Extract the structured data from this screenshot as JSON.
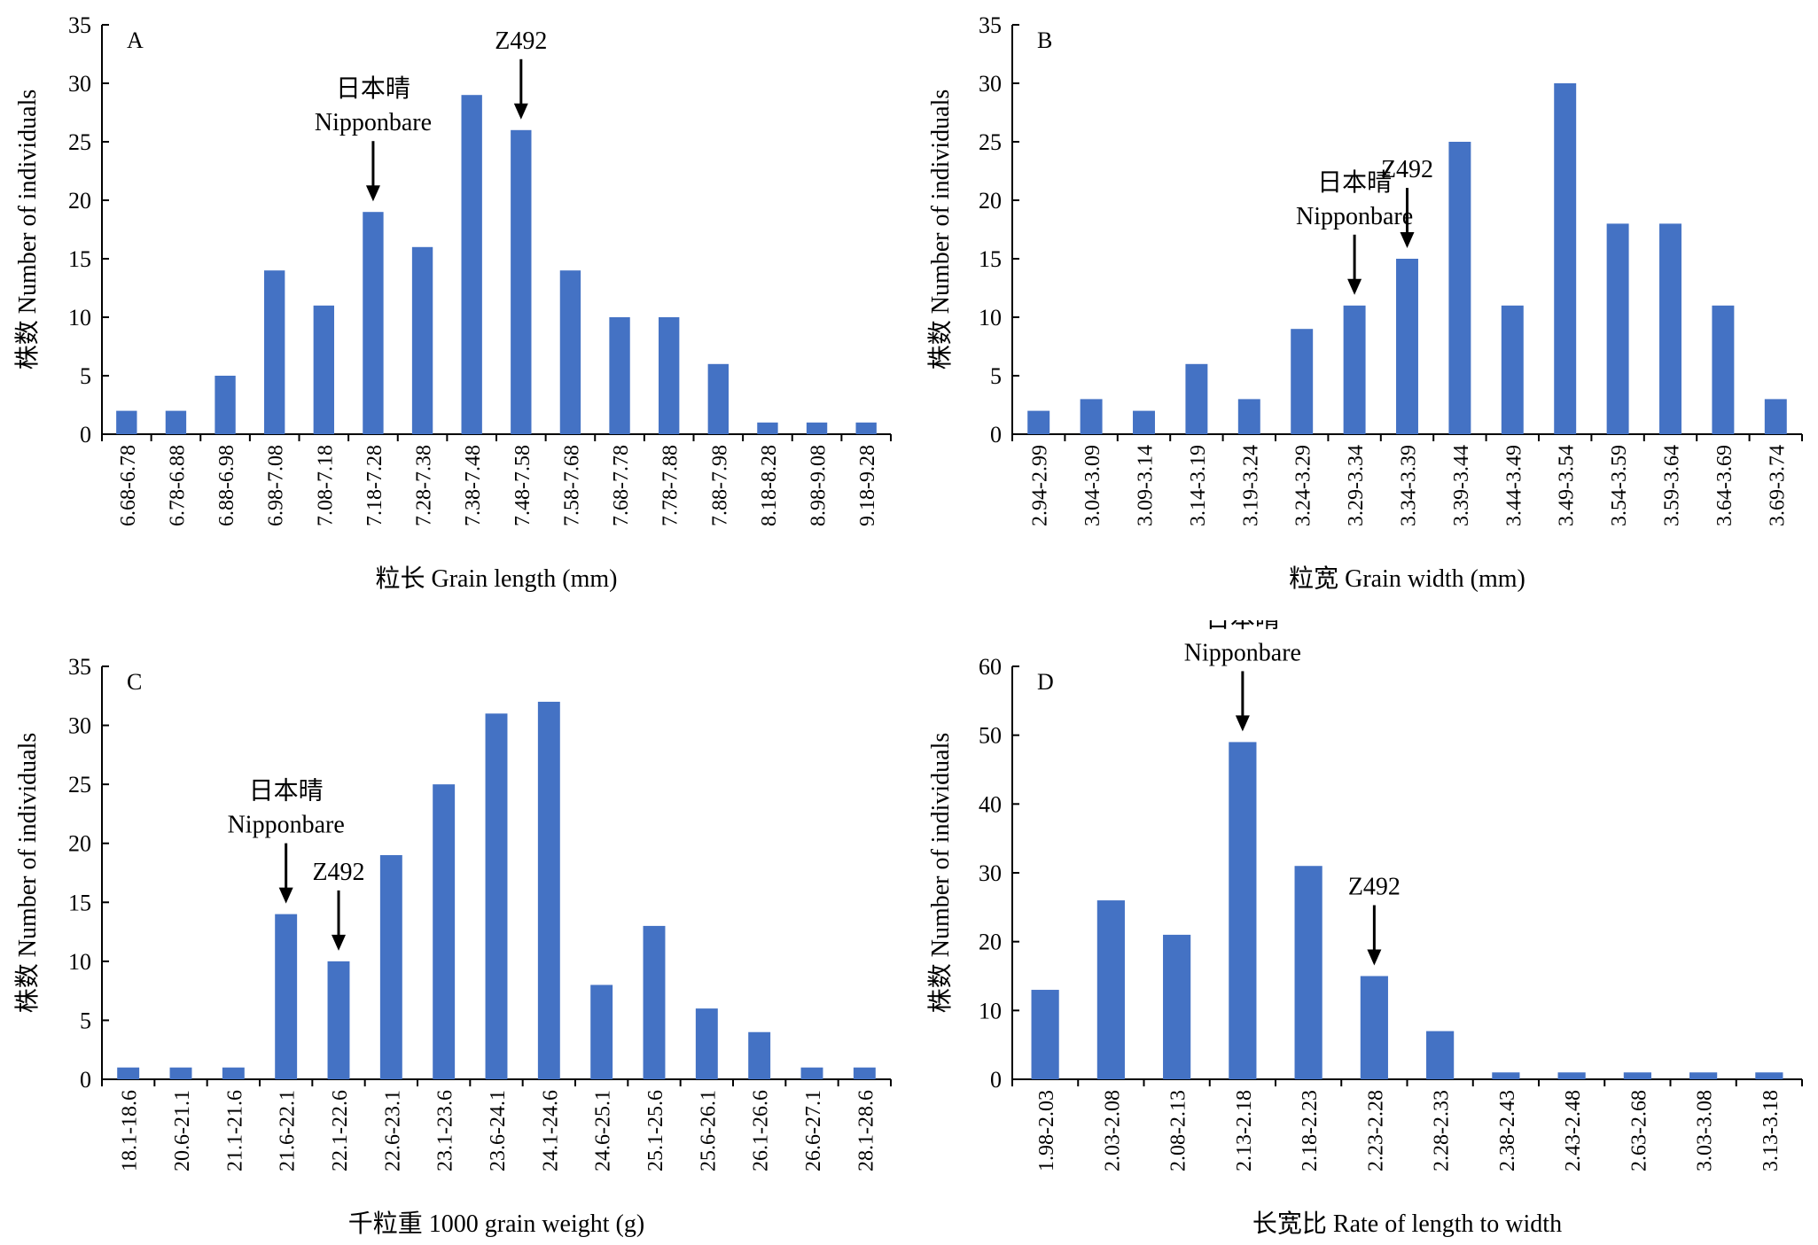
{
  "bar_color": "#4472C4",
  "arrow_icon": "down-arrow-icon",
  "chart_data": [
    {
      "type": "bar",
      "panel_label": "A",
      "xlabel": "粒长 Grain length (mm)",
      "ylabel": "株数 Number of individuals",
      "ylim": [
        0,
        35
      ],
      "yticks": [
        0,
        5,
        10,
        15,
        20,
        25,
        30,
        35
      ],
      "categories": [
        "6.68-6.78",
        "6.78-6.88",
        "6.88-6.98",
        "6.98-7.08",
        "7.08-7.18",
        "7.18-7.28",
        "7.28-7.38",
        "7.38-7.48",
        "7.48-7.58",
        "7.58-7.68",
        "7.68-7.78",
        "7.78-7.88",
        "7.88-7.98",
        "8.18-8.28",
        "8.98-9.08",
        "9.18-9.28"
      ],
      "values": [
        2,
        2,
        5,
        14,
        11,
        19,
        16,
        29,
        26,
        14,
        10,
        10,
        6,
        1,
        1,
        1
      ],
      "grid": false,
      "annotations": [
        {
          "lines": [
            "日本晴",
            "Nipponbare"
          ],
          "category_index": 5
        },
        {
          "lines": [
            "Z492"
          ],
          "category_index": 8
        }
      ]
    },
    {
      "type": "bar",
      "panel_label": "B",
      "xlabel": "粒宽 Grain width (mm)",
      "ylabel": "株数 Number of individuals",
      "ylim": [
        0,
        35
      ],
      "yticks": [
        0,
        5,
        10,
        15,
        20,
        25,
        30,
        35
      ],
      "categories": [
        "2.94-2.99",
        "3.04-3.09",
        "3.09-3.14",
        "3.14-3.19",
        "3.19-3.24",
        "3.24-3.29",
        "3.29-3.34",
        "3.34-3.39",
        "3.39-3.44",
        "3.44-3.49",
        "3.49-3.54",
        "3.54-3.59",
        "3.59-3.64",
        "3.64-3.69",
        "3.69-3.74"
      ],
      "values": [
        2,
        3,
        2,
        6,
        3,
        9,
        11,
        15,
        25,
        11,
        30,
        18,
        18,
        11,
        3
      ],
      "grid": false,
      "annotations": [
        {
          "lines": [
            "日本晴",
            "Nipponbare"
          ],
          "category_index": 6
        },
        {
          "lines": [
            "Z492"
          ],
          "category_index": 7
        }
      ]
    },
    {
      "type": "bar",
      "panel_label": "C",
      "xlabel": "千粒重 1000 grain weight (g)",
      "ylabel": "株数 Number of individuals",
      "ylim": [
        0,
        35
      ],
      "yticks": [
        0,
        5,
        10,
        15,
        20,
        25,
        30,
        35
      ],
      "categories": [
        "18.1-18.6",
        "20.6-21.1",
        "21.1-21.6",
        "21.6-22.1",
        "22.1-22.6",
        "22.6-23.1",
        "23.1-23.6",
        "23.6-24.1",
        "24.1-24.6",
        "24.6-25.1",
        "25.1-25.6",
        "25.6-26.1",
        "26.1-26.6",
        "26.6-27.1",
        "28.1-28.6"
      ],
      "values": [
        1,
        1,
        1,
        14,
        10,
        19,
        25,
        31,
        32,
        8,
        13,
        6,
        4,
        1,
        1
      ],
      "grid": false,
      "annotations": [
        {
          "lines": [
            "日本晴",
            "Nipponbare"
          ],
          "category_index": 3
        },
        {
          "lines": [
            "Z492"
          ],
          "category_index": 4
        }
      ]
    },
    {
      "type": "bar",
      "panel_label": "D",
      "xlabel": "长宽比 Rate of length to width",
      "ylabel": "株数 Number of individuals",
      "ylim": [
        0,
        60
      ],
      "yticks": [
        0,
        10,
        20,
        30,
        40,
        50,
        60
      ],
      "categories": [
        "1.98-2.03",
        "2.03-2.08",
        "2.08-2.13",
        "2.13-2.18",
        "2.18-2.23",
        "2.23-2.28",
        "2.28-2.33",
        "2.38-2.43",
        "2.43-2.48",
        "2.63-2.68",
        "3.03-3.08",
        "3.13-3.18"
      ],
      "values": [
        13,
        26,
        21,
        49,
        31,
        15,
        7,
        1,
        1,
        1,
        1,
        1
      ],
      "grid": false,
      "annotations": [
        {
          "lines": [
            "日本晴",
            "Nipponbare"
          ],
          "category_index": 3
        },
        {
          "lines": [
            "Z492"
          ],
          "category_index": 5
        }
      ]
    }
  ]
}
